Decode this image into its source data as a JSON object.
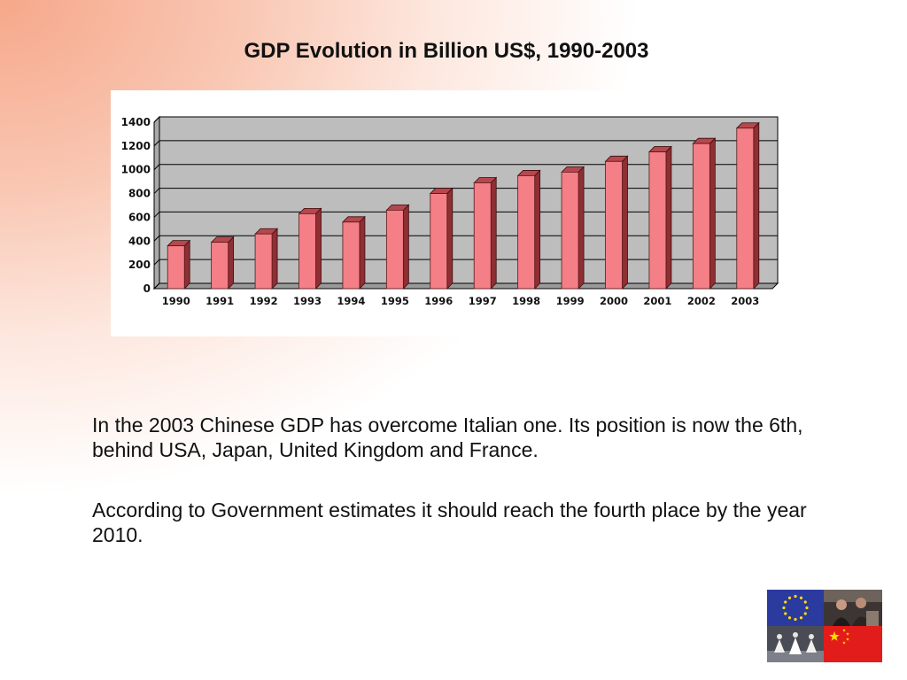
{
  "slide": {
    "title": "GDP Evolution in Billion US$, 1990-2003",
    "paragraphs": [
      "In the 2003 Chinese GDP has overcome Italian one. Its position is now the 6th, behind USA, Japan, United Kingdom and France.",
      "According to Government estimates it should reach the fourth place by the year 2010."
    ]
  },
  "chart_data": {
    "type": "bar",
    "categories": [
      "1990",
      "1991",
      "1992",
      "1993",
      "1994",
      "1995",
      "1996",
      "1997",
      "1998",
      "1999",
      "2000",
      "2001",
      "2002",
      "2003"
    ],
    "values": [
      360,
      390,
      460,
      630,
      560,
      660,
      800,
      890,
      950,
      980,
      1070,
      1150,
      1220,
      1350
    ],
    "ylim": [
      0,
      1400
    ],
    "yticks": [
      0,
      200,
      400,
      600,
      800,
      1000,
      1200,
      1400
    ],
    "grid": true,
    "colors": {
      "bar_front": "#f47f86",
      "bar_side": "#8e2f33",
      "bar_top": "#b5484e",
      "plot_bg": "#bdbdbd",
      "gridline": "#000000"
    }
  },
  "logo": {
    "icons": [
      "eu-flag-icon",
      "people-photo-icon",
      "dancers-photo-icon",
      "china-flag-icon"
    ],
    "colors": {
      "eu_blue": "#2b3a9e",
      "eu_star": "#ffdd00",
      "china_red": "#e21b1b",
      "china_star": "#ffde00"
    }
  }
}
